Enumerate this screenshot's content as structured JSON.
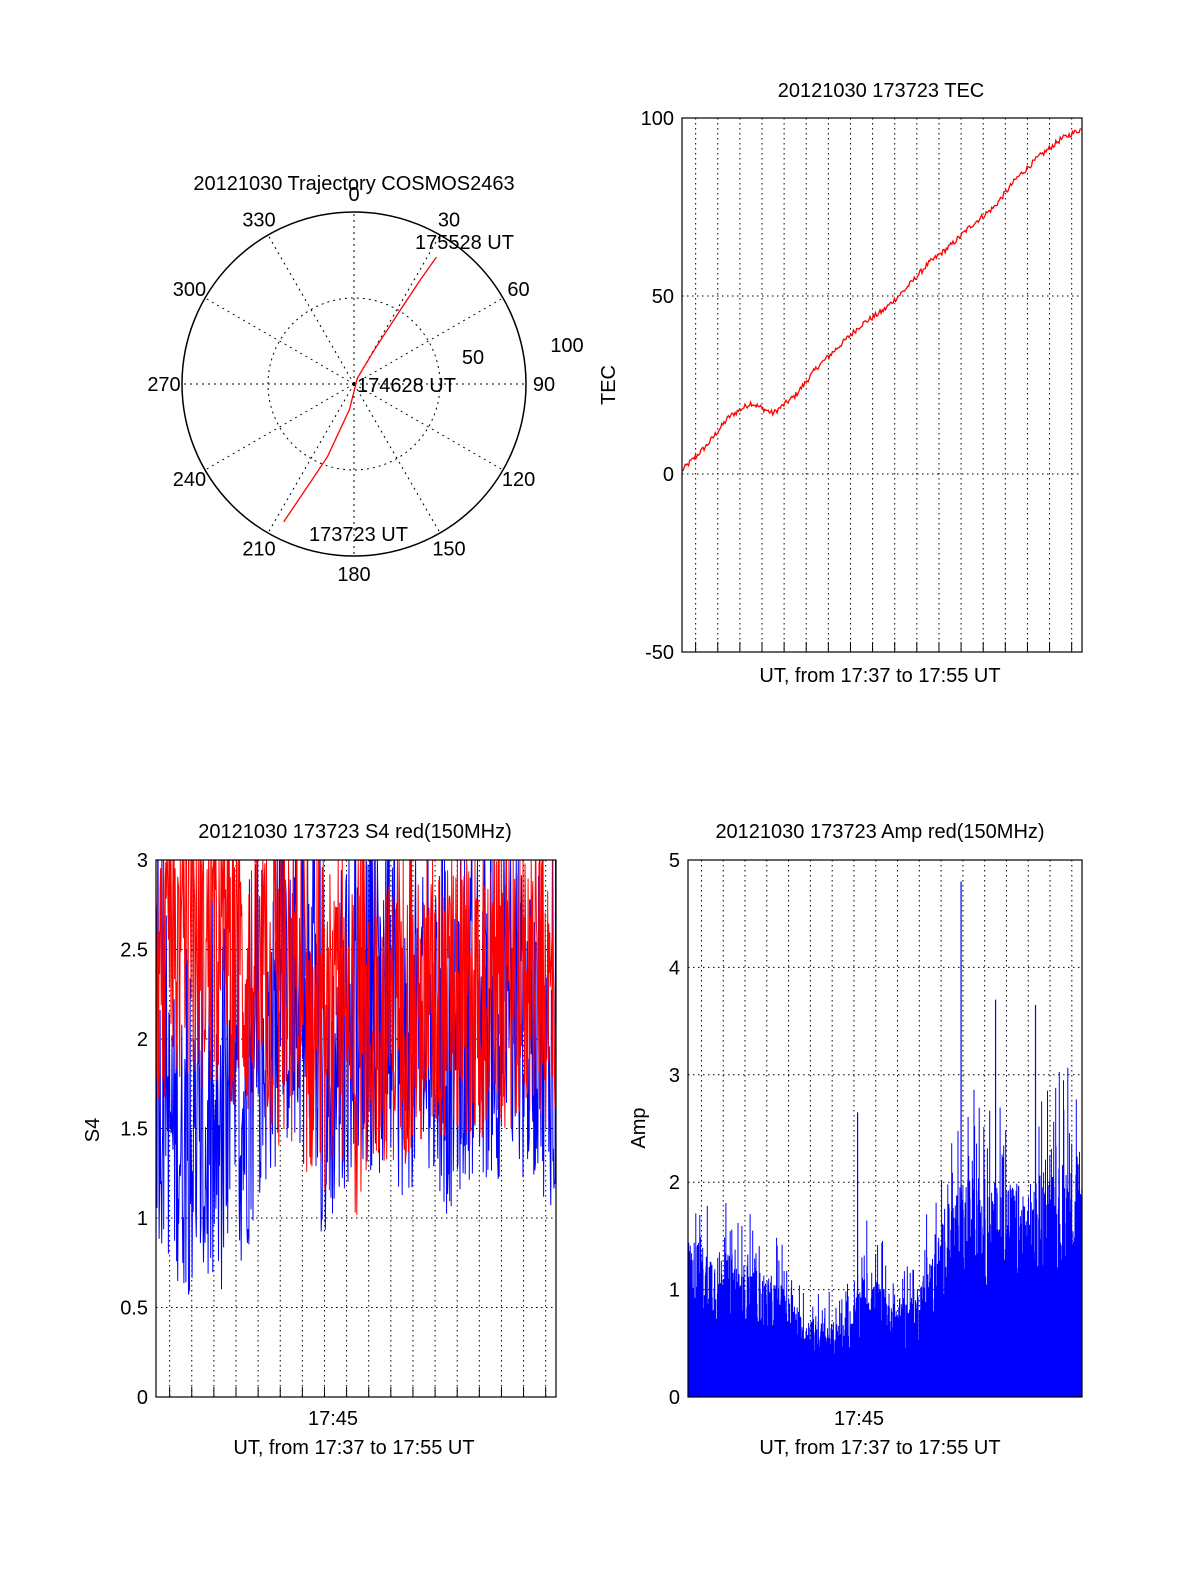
{
  "colors": {
    "red": "#ff0000",
    "blue": "#0000ff",
    "grid": "#000000"
  },
  "chart_data": [
    {
      "id": "polar",
      "type": "polar",
      "title": "20121030 Trajectory COSMOS2463",
      "radial_range": [
        0,
        100
      ],
      "radial_ticks": [
        "50",
        "100"
      ],
      "angle_labels": [
        "0",
        "30",
        "60",
        "90",
        "120",
        "150",
        "180",
        "210",
        "240",
        "270",
        "300",
        "330"
      ],
      "series": [
        {
          "color": "red",
          "points": [
            [
              207,
              90
            ],
            [
              205,
              70
            ],
            [
              200,
              45
            ],
            [
              190,
              15
            ],
            [
              30,
              4
            ],
            [
              31,
              25
            ],
            [
              32,
              50
            ],
            [
              32.5,
              72
            ],
            [
              33,
              88
            ]
          ]
        }
      ],
      "annotations": [
        {
          "text": "175528 UT",
          "az": 33,
          "r": 88
        },
        {
          "text": "174628 UT",
          "az": 0,
          "r": 0
        },
        {
          "text": "173723 UT",
          "az": 207,
          "r": 90
        }
      ]
    },
    {
      "id": "tec",
      "type": "line",
      "title": "20121030 173723 TEC",
      "xlabel": "UT, from 17:37 to 17:55 UT",
      "ylabel": "TEC",
      "xlim": [
        "17:37:23",
        "17:55:28"
      ],
      "ylim": [
        -50,
        100
      ],
      "yticks": [
        "-50",
        "0",
        "50",
        "100"
      ],
      "xticks": [],
      "series": [
        {
          "color": "red",
          "x": [
            "17:37:23",
            "17:38:30",
            "17:39:30",
            "17:40:30",
            "17:41:30",
            "17:42:30",
            "17:43:30",
            "17:44:30",
            "17:45:30",
            "17:46:30",
            "17:47:30",
            "17:48:30",
            "17:49:30",
            "17:50:30",
            "17:51:30",
            "17:52:30",
            "17:53:30",
            "17:54:30",
            "17:55:28"
          ],
          "y": [
            1,
            8,
            16,
            20,
            17,
            22,
            30,
            36,
            42,
            46,
            52,
            59,
            64,
            70,
            75,
            83,
            89,
            94,
            97
          ]
        }
      ]
    },
    {
      "id": "s4",
      "type": "line",
      "title": "20121030 173723 S4 red(150MHz)",
      "xlabel": "UT, from 17:37 to 17:55 UT",
      "ylabel": "S4",
      "xlim": [
        "17:37:23",
        "17:55:28"
      ],
      "ylim": [
        0,
        3
      ],
      "yticks": [
        "0",
        "0.5",
        "1",
        "1.5",
        "2",
        "2.5",
        "3"
      ],
      "xticks": [
        "17:45"
      ],
      "series": [
        {
          "color": "blue",
          "x": [
            "17:37:23",
            "17:38:30",
            "17:39:30",
            "17:40:30",
            "17:41:30",
            "17:42:30",
            "17:43:30",
            "17:44:30",
            "17:45:00",
            "17:45:30",
            "17:46:30",
            "17:47:30",
            "17:48:30",
            "17:49:30",
            "17:50:30",
            "17:51:30",
            "17:52:30",
            "17:53:30",
            "17:54:30",
            "17:55:28"
          ],
          "y": [
            1.7,
            1.4,
            1.3,
            1.3,
            1.6,
            2.0,
            2.2,
            2.0,
            1.6,
            1.8,
            2.1,
            2.0,
            1.9,
            2.0,
            1.8,
            2.0,
            2.0,
            2.0,
            2.0,
            1.8
          ]
        },
        {
          "color": "red",
          "x": [
            "17:37:23",
            "17:38:30",
            "17:39:30",
            "17:40:30",
            "17:41:30",
            "17:42:30",
            "17:43:30",
            "17:44:30",
            "17:45:00",
            "17:45:30",
            "17:46:30",
            "17:47:30",
            "17:48:30",
            "17:49:30",
            "17:50:30",
            "17:51:30",
            "17:52:30",
            "17:53:30",
            "17:54:30",
            "17:55:28"
          ],
          "y": [
            2.4,
            2.5,
            2.5,
            2.5,
            2.3,
            2.2,
            2.1,
            2.0,
            1.9,
            2.0,
            1.8,
            2.1,
            2.1,
            2.1,
            2.2,
            2.2,
            2.2,
            2.3,
            2.3,
            2.2
          ]
        }
      ]
    },
    {
      "id": "amp",
      "type": "line",
      "title": "20121030 173723 Amp red(150MHz)",
      "xlabel": "UT, from 17:37 to 17:55 UT",
      "ylabel": "Amp",
      "xlim": [
        "17:37:23",
        "17:55:28"
      ],
      "ylim": [
        0,
        5
      ],
      "yticks": [
        "0",
        "1",
        "2",
        "3",
        "4",
        "5"
      ],
      "xticks": [
        "17:45"
      ],
      "series": [
        {
          "color": "blue",
          "x": [
            "17:37:23",
            "17:38:30",
            "17:39:30",
            "17:40:30",
            "17:41:30",
            "17:42:30",
            "17:43:30",
            "17:44:30",
            "17:45:00",
            "17:45:30",
            "17:46:30",
            "17:47:30",
            "17:48:30",
            "17:49:30",
            "17:50:30",
            "17:51:30",
            "17:52:30",
            "17:53:30",
            "17:54:30",
            "17:55:28"
          ],
          "y": [
            1.5,
            1.4,
            1.3,
            1.2,
            1.1,
            0.8,
            0.7,
            0.7,
            0.9,
            1.2,
            1.0,
            0.9,
            1.3,
            1.9,
            2.1,
            2.0,
            2.0,
            2.0,
            2.2,
            2.3
          ],
          "peaks": [
            [
              "17:45:10",
              2.65
            ],
            [
              "17:49:55",
              4.8
            ],
            [
              "17:51:30",
              3.7
            ],
            [
              "17:53:20",
              3.65
            ]
          ]
        }
      ]
    }
  ]
}
